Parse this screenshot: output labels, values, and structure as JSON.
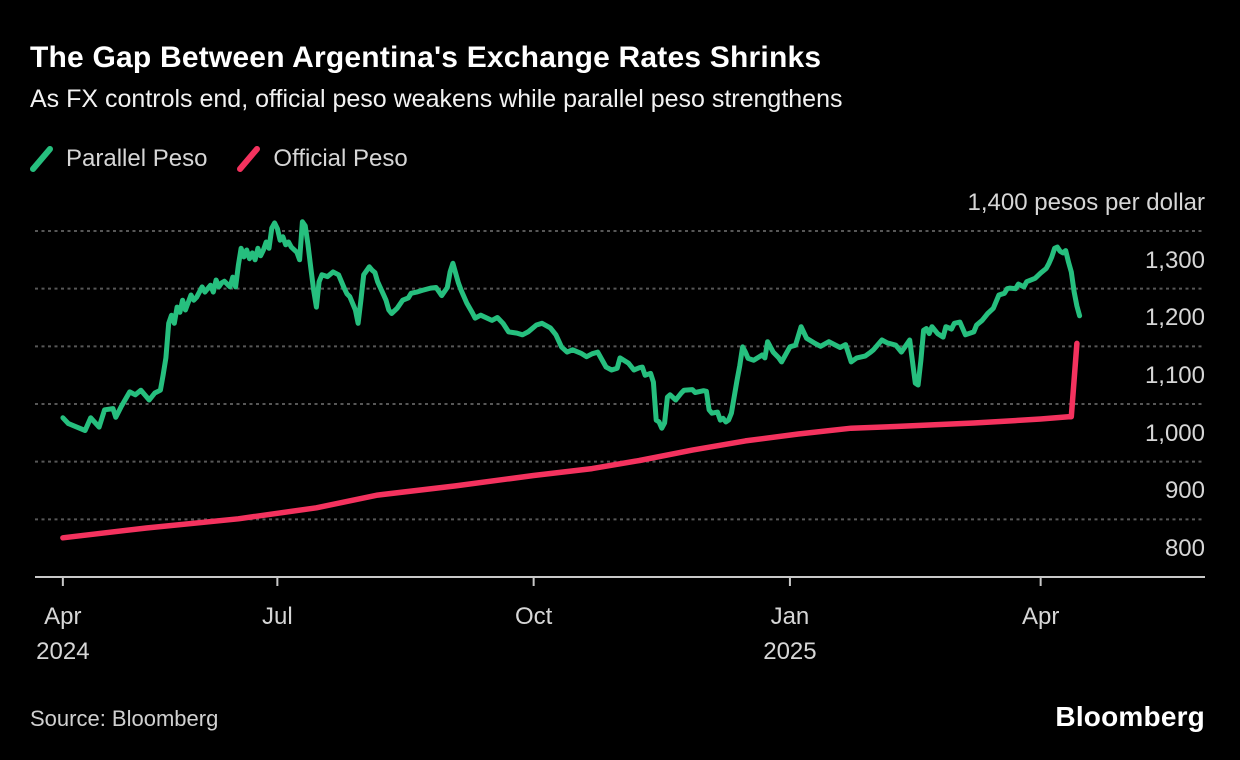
{
  "header": {
    "title": "The Gap Between Argentina's Exchange Rates Shrinks",
    "subtitle": "As FX controls end, official peso weakens while parallel peso strengthens"
  },
  "legend": [
    {
      "label": "Parallel Peso",
      "color": "#26bf7e"
    },
    {
      "label": "Official Peso",
      "color": "#f4325e"
    }
  ],
  "footer": {
    "source": "Source: Bloomberg",
    "logo": "Bloomberg"
  },
  "colors": {
    "background": "#000000",
    "grid": "#575757",
    "axis": "#c8c8c8",
    "text": "#d6d6d6",
    "parallel": "#26bf7e",
    "official": "#f4325e"
  },
  "chart_data": {
    "type": "line",
    "title": "The Gap Between Argentina's Exchange Rates Shrinks",
    "subtitle": "As FX controls end, official peso weakens while parallel peso strengthens",
    "unit": "pesos per dollar",
    "y_top_label": "1,400 pesos per dollar",
    "ylim": [
      800,
      1400
    ],
    "y_ticks": [
      1400,
      1300,
      1200,
      1100,
      1000,
      900,
      800
    ],
    "grid": "dotted horizontal",
    "legend_position": "top-left",
    "start_date": "2024-04-15",
    "x_domain_days": [
      -10,
      410
    ],
    "x_tick_days": [
      0,
      77,
      169,
      261,
      351
    ],
    "x_tick_labels": [
      [
        "Apr",
        "2024"
      ],
      [
        "Jul",
        ""
      ],
      [
        "Oct",
        ""
      ],
      [
        "Jan",
        "2025"
      ],
      [
        "Apr",
        ""
      ]
    ],
    "series": [
      {
        "name": "Parallel Peso",
        "color": "#26bf7e",
        "width": 5,
        "points": [
          [
            0,
            1076
          ],
          [
            2,
            1066
          ],
          [
            5,
            1060
          ],
          [
            8,
            1054
          ],
          [
            10,
            1076
          ],
          [
            13,
            1060
          ],
          [
            15,
            1090
          ],
          [
            18,
            1092
          ],
          [
            19,
            1077
          ],
          [
            21,
            1096
          ],
          [
            24,
            1121
          ],
          [
            26,
            1116
          ],
          [
            28,
            1124
          ],
          [
            31,
            1107
          ],
          [
            33,
            1119
          ],
          [
            35,
            1124
          ],
          [
            36,
            1150
          ],
          [
            37,
            1180
          ],
          [
            38,
            1240
          ],
          [
            39,
            1254
          ],
          [
            40,
            1240
          ],
          [
            41,
            1268
          ],
          [
            42,
            1259
          ],
          [
            43,
            1280
          ],
          [
            44,
            1263
          ],
          [
            46,
            1289
          ],
          [
            47,
            1280
          ],
          [
            48,
            1285
          ],
          [
            50,
            1303
          ],
          [
            51,
            1294
          ],
          [
            53,
            1306
          ],
          [
            54,
            1294
          ],
          [
            55,
            1315
          ],
          [
            56,
            1303
          ],
          [
            57,
            1310
          ],
          [
            58,
            1313
          ],
          [
            60,
            1303
          ],
          [
            61,
            1320
          ],
          [
            62,
            1303
          ],
          [
            63,
            1341
          ],
          [
            64,
            1370
          ],
          [
            65,
            1355
          ],
          [
            66,
            1367
          ],
          [
            67,
            1352
          ],
          [
            68,
            1362
          ],
          [
            69,
            1350
          ],
          [
            70,
            1370
          ],
          [
            71,
            1357
          ],
          [
            72,
            1367
          ],
          [
            73,
            1381
          ],
          [
            74,
            1370
          ],
          [
            75,
            1405
          ],
          [
            76,
            1414
          ],
          [
            77,
            1404
          ],
          [
            78,
            1384
          ],
          [
            79,
            1390
          ],
          [
            80,
            1376
          ],
          [
            81,
            1381
          ],
          [
            82,
            1372
          ],
          [
            84,
            1363
          ],
          [
            85,
            1350
          ],
          [
            86,
            1416
          ],
          [
            87,
            1409
          ],
          [
            88,
            1376
          ],
          [
            89,
            1336
          ],
          [
            90,
            1298
          ],
          [
            91,
            1268
          ],
          [
            92,
            1312
          ],
          [
            93,
            1324
          ],
          [
            95,
            1321
          ],
          [
            97,
            1329
          ],
          [
            99,
            1324
          ],
          [
            101,
            1301
          ],
          [
            102,
            1291
          ],
          [
            103,
            1286
          ],
          [
            105,
            1263
          ],
          [
            106,
            1240
          ],
          [
            107,
            1280
          ],
          [
            108,
            1324
          ],
          [
            110,
            1338
          ],
          [
            111,
            1332
          ],
          [
            112,
            1328
          ],
          [
            113,
            1312
          ],
          [
            115,
            1291
          ],
          [
            116,
            1280
          ],
          [
            117,
            1263
          ],
          [
            118,
            1257
          ],
          [
            120,
            1266
          ],
          [
            122,
            1280
          ],
          [
            124,
            1284
          ],
          [
            125,
            1292
          ],
          [
            127,
            1294
          ],
          [
            129,
            1297
          ],
          [
            132,
            1301
          ],
          [
            134,
            1302
          ],
          [
            136,
            1288
          ],
          [
            138,
            1302
          ],
          [
            139,
            1329
          ],
          [
            140,
            1344
          ],
          [
            142,
            1310
          ],
          [
            143,
            1297
          ],
          [
            145,
            1275
          ],
          [
            147,
            1258
          ],
          [
            148,
            1249
          ],
          [
            150,
            1254
          ],
          [
            154,
            1245
          ],
          [
            156,
            1250
          ],
          [
            158,
            1240
          ],
          [
            160,
            1225
          ],
          [
            163,
            1223
          ],
          [
            165,
            1220
          ],
          [
            167,
            1225
          ],
          [
            170,
            1237
          ],
          [
            172,
            1240
          ],
          [
            175,
            1232
          ],
          [
            177,
            1220
          ],
          [
            179,
            1199
          ],
          [
            181,
            1190
          ],
          [
            183,
            1194
          ],
          [
            186,
            1188
          ],
          [
            188,
            1182
          ],
          [
            190,
            1187
          ],
          [
            192,
            1190
          ],
          [
            195,
            1164
          ],
          [
            197,
            1159
          ],
          [
            199,
            1162
          ],
          [
            200,
            1180
          ],
          [
            203,
            1171
          ],
          [
            205,
            1159
          ],
          [
            207,
            1163
          ],
          [
            208,
            1164
          ],
          [
            209,
            1150
          ],
          [
            211,
            1153
          ],
          [
            212,
            1138
          ],
          [
            213,
            1072
          ],
          [
            214,
            1069
          ],
          [
            215,
            1058
          ],
          [
            216,
            1067
          ],
          [
            217,
            1112
          ],
          [
            218,
            1116
          ],
          [
            220,
            1107
          ],
          [
            222,
            1119
          ],
          [
            223,
            1124
          ],
          [
            226,
            1125
          ],
          [
            227,
            1120
          ],
          [
            230,
            1123
          ],
          [
            231,
            1122
          ],
          [
            232,
            1090
          ],
          [
            233,
            1084
          ],
          [
            235,
            1086
          ],
          [
            236,
            1072
          ],
          [
            237,
            1075
          ],
          [
            238,
            1069
          ],
          [
            239,
            1072
          ],
          [
            240,
            1084
          ],
          [
            242,
            1141
          ],
          [
            243,
            1167
          ],
          [
            244,
            1199
          ],
          [
            245,
            1190
          ],
          [
            246,
            1179
          ],
          [
            248,
            1176
          ],
          [
            251,
            1185
          ],
          [
            252,
            1180
          ],
          [
            253,
            1208
          ],
          [
            255,
            1190
          ],
          [
            257,
            1180
          ],
          [
            258,
            1173
          ],
          [
            261,
            1199
          ],
          [
            263,
            1202
          ],
          [
            265,
            1234
          ],
          [
            267,
            1214
          ],
          [
            270,
            1205
          ],
          [
            272,
            1200
          ],
          [
            275,
            1208
          ],
          [
            277,
            1203
          ],
          [
            279,
            1198
          ],
          [
            281,
            1203
          ],
          [
            283,
            1173
          ],
          [
            285,
            1180
          ],
          [
            288,
            1183
          ],
          [
            290,
            1190
          ],
          [
            291,
            1194
          ],
          [
            294,
            1211
          ],
          [
            296,
            1206
          ],
          [
            299,
            1202
          ],
          [
            301,
            1190
          ],
          [
            304,
            1211
          ],
          [
            306,
            1136
          ],
          [
            307,
            1133
          ],
          [
            308,
            1176
          ],
          [
            309,
            1228
          ],
          [
            310,
            1231
          ],
          [
            311,
            1222
          ],
          [
            312,
            1234
          ],
          [
            314,
            1222
          ],
          [
            316,
            1216
          ],
          [
            317,
            1234
          ],
          [
            319,
            1230
          ],
          [
            320,
            1240
          ],
          [
            322,
            1242
          ],
          [
            324,
            1220
          ],
          [
            327,
            1225
          ],
          [
            328,
            1237
          ],
          [
            330,
            1245
          ],
          [
            332,
            1257
          ],
          [
            334,
            1266
          ],
          [
            336,
            1289
          ],
          [
            338,
            1292
          ],
          [
            339,
            1300
          ],
          [
            340,
            1301
          ],
          [
            342,
            1300
          ],
          [
            343,
            1308
          ],
          [
            345,
            1303
          ],
          [
            346,
            1312
          ],
          [
            349,
            1318
          ],
          [
            351,
            1327
          ],
          [
            353,
            1335
          ],
          [
            354,
            1344
          ],
          [
            355,
            1355
          ],
          [
            356,
            1370
          ],
          [
            357,
            1372
          ],
          [
            358,
            1365
          ],
          [
            359,
            1362
          ],
          [
            360,
            1366
          ],
          [
            361,
            1346
          ],
          [
            362,
            1329
          ],
          [
            363,
            1295
          ],
          [
            364,
            1270
          ],
          [
            365,
            1253
          ]
        ]
      },
      {
        "name": "Official Peso",
        "color": "#f4325e",
        "width": 5.5,
        "points": [
          [
            0,
            868
          ],
          [
            30,
            885
          ],
          [
            63,
            901
          ],
          [
            91,
            920
          ],
          [
            113,
            942
          ],
          [
            141,
            958
          ],
          [
            169,
            976
          ],
          [
            190,
            988
          ],
          [
            207,
            1002
          ],
          [
            226,
            1020
          ],
          [
            245,
            1036
          ],
          [
            264,
            1048
          ],
          [
            283,
            1058
          ],
          [
            299,
            1061
          ],
          [
            313,
            1064
          ],
          [
            327,
            1067
          ],
          [
            341,
            1071
          ],
          [
            351,
            1074
          ],
          [
            361,
            1078
          ],
          [
            362,
            1078
          ],
          [
            364,
            1205
          ]
        ]
      }
    ]
  }
}
